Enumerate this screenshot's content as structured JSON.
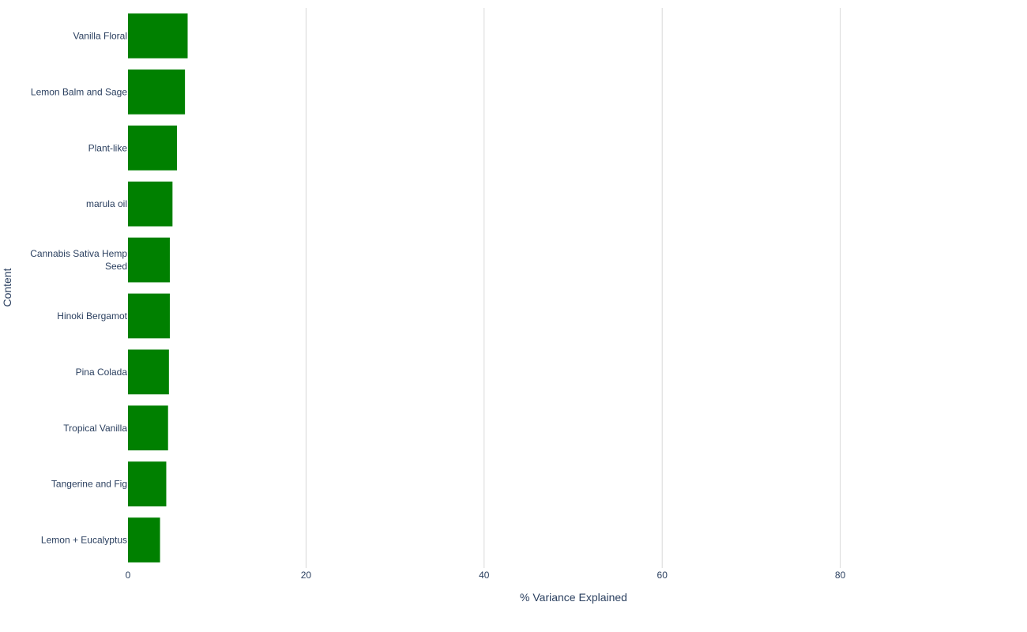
{
  "chart_data": {
    "type": "bar",
    "orientation": "horizontal",
    "categories": [
      "Vanilla Floral",
      "Lemon Balm and Sage",
      "Plant-like",
      "marula oil",
      "Cannabis Sativa Hemp Seed",
      "Hinoki Bergamot",
      "Pina Colada",
      "Tropical Vanilla",
      "Tangerine and Fig",
      "Lemon + Eucalyptus"
    ],
    "category_lines": [
      [
        "Vanilla Floral"
      ],
      [
        "Lemon Balm and Sage"
      ],
      [
        "Plant-like"
      ],
      [
        "marula oil"
      ],
      [
        "Cannabis Sativa Hemp",
        "Seed"
      ],
      [
        "Hinoki Bergamot"
      ],
      [
        "Pina Colada"
      ],
      [
        "Tropical Vanilla"
      ],
      [
        "Tangerine and Fig"
      ],
      [
        "Lemon + Eucalyptus"
      ]
    ],
    "values": [
      6.7,
      6.4,
      5.5,
      5.0,
      4.7,
      4.7,
      4.6,
      4.5,
      4.3,
      3.6
    ],
    "title": "",
    "xlabel": "% Variance Explained",
    "ylabel": "Content",
    "xlim": [
      0,
      100
    ],
    "xticks": [
      0,
      20,
      40,
      60,
      80
    ],
    "grid": true,
    "bar_color": "#008000",
    "grid_color": "#d9d9d9",
    "text_color": "#2a3f5f"
  }
}
